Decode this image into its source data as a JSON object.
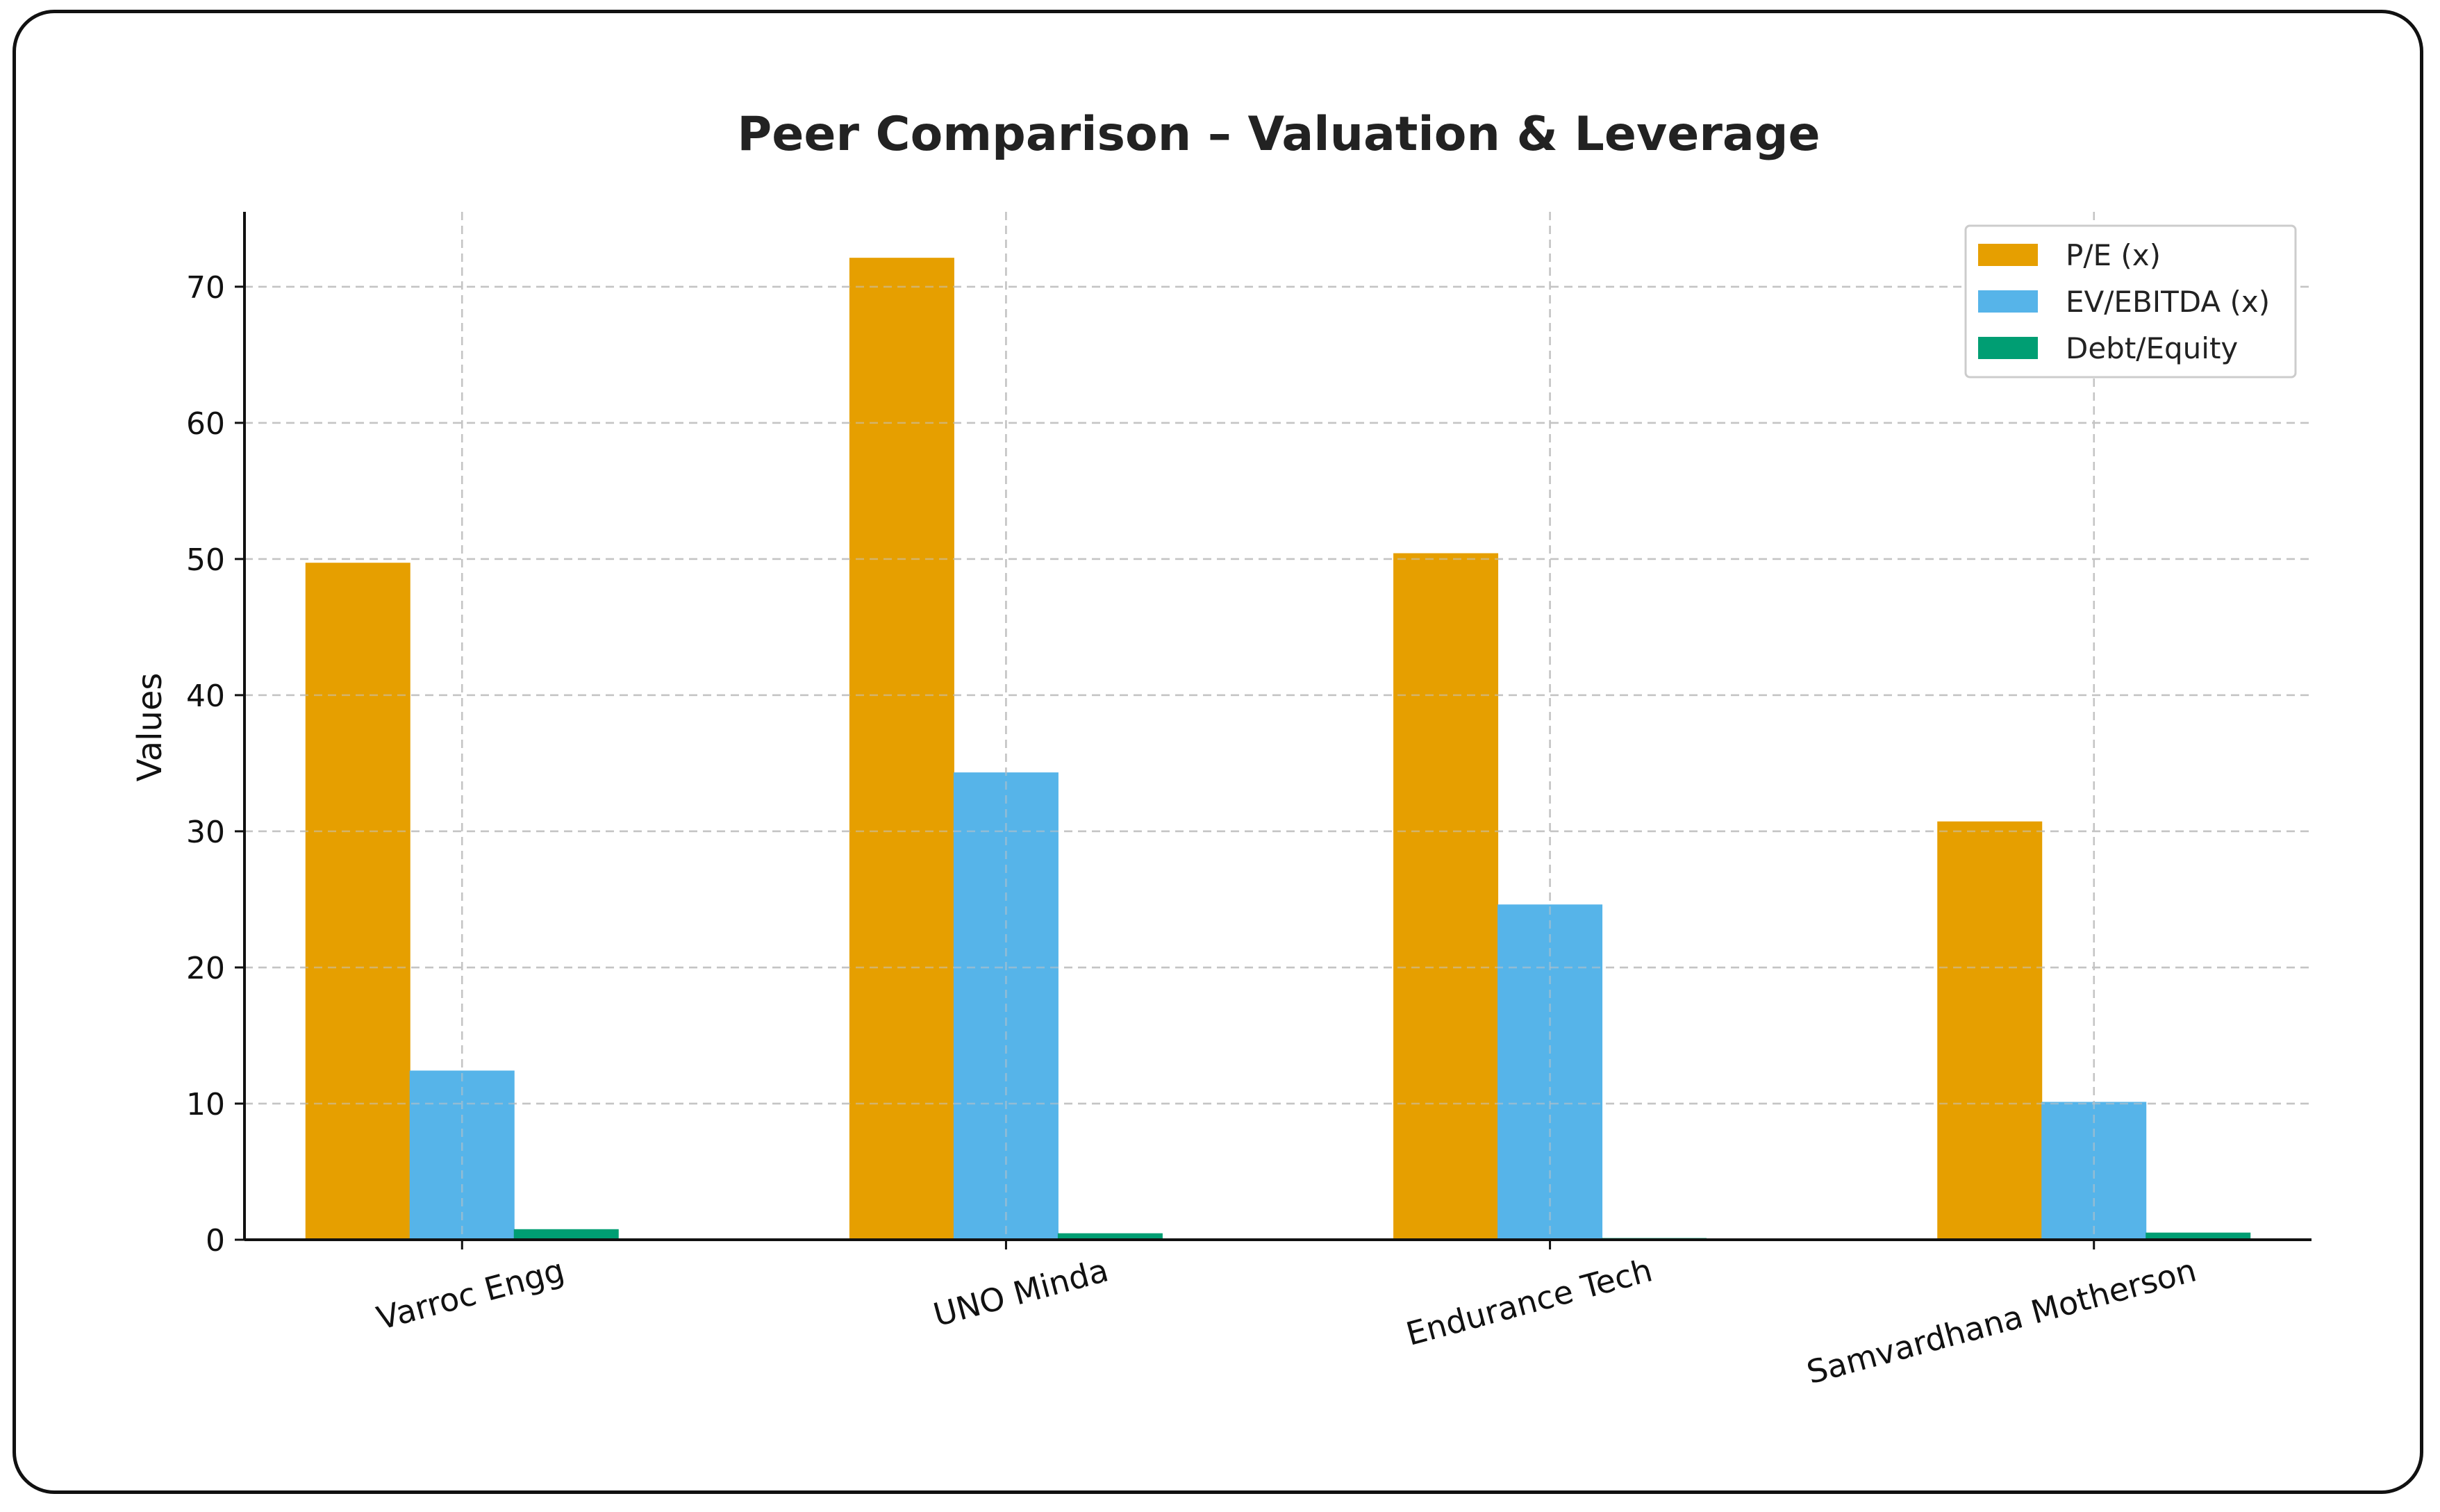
{
  "chart_data": {
    "type": "bar",
    "title": "Peer Comparison – Valuation & Leverage",
    "xlabel": "",
    "ylabel": "Values",
    "ylim": [
      0,
      75.5
    ],
    "yticks": [
      0,
      10,
      20,
      30,
      40,
      50,
      60,
      70
    ],
    "grid": true,
    "legend_position": "top-right",
    "categories": [
      "Varroc Engg",
      "UNO Minda",
      "Endurance Tech",
      "Samvardhana Motherson"
    ],
    "series": [
      {
        "name": "P/E (x)",
        "color": "#E69F00",
        "values": [
          49.7,
          72.1,
          50.4,
          30.7
        ]
      },
      {
        "name": "EV/EBITDA (x)",
        "color": "#56B4E9",
        "values": [
          12.4,
          34.3,
          24.6,
          10.1
        ]
      },
      {
        "name": "Debt/Equity",
        "color": "#009E73",
        "values": [
          0.75,
          0.45,
          0.1,
          0.5
        ]
      }
    ]
  }
}
